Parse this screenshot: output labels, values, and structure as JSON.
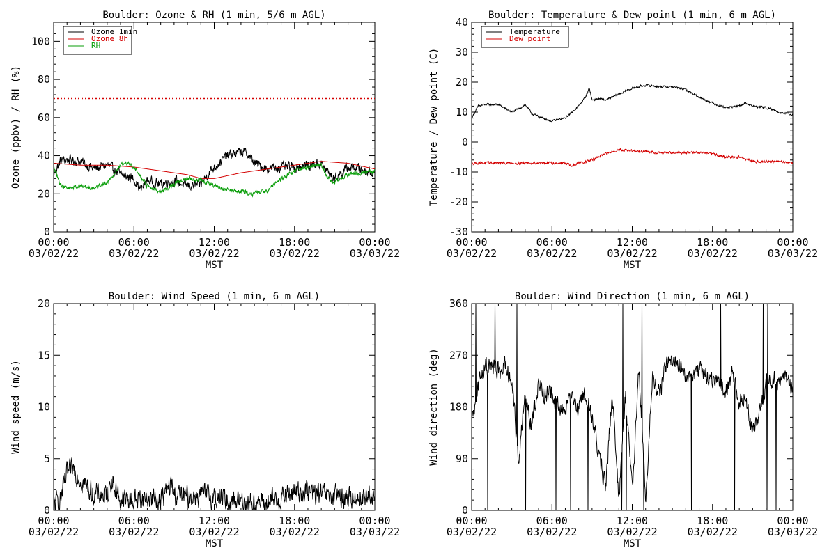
{
  "colors": {
    "black": "#000000",
    "red": "#d40000",
    "green": "#0a9e0a"
  },
  "chart_data": [
    {
      "id": "ozone",
      "type": "line",
      "title": "Boulder: Ozone & RH (1 min, 5/6 m AGL)",
      "xlabel": "MST",
      "ylabel": "Ozone (ppbv) / RH (%)",
      "xlim": [
        0,
        24
      ],
      "ylim": [
        0,
        110
      ],
      "yticks": [
        0,
        20,
        40,
        60,
        80,
        100
      ],
      "xticks": [
        {
          "time": "00:00",
          "date": "03/02/22"
        },
        {
          "time": "06:00",
          "date": "03/02/22"
        },
        {
          "time": "12:00",
          "date": "03/02/22"
        },
        {
          "time": "18:00",
          "date": "03/02/22"
        },
        {
          "time": "00:00",
          "date": "03/03/22"
        }
      ],
      "legend_position": "top-left",
      "reference_line": {
        "y": 70,
        "color": "#d40000",
        "style": "dotted"
      },
      "series": [
        {
          "name": "Ozone 1min",
          "color": "#000000",
          "noise": 2.2,
          "x": [
            0,
            0.5,
            1,
            2,
            3,
            4,
            5,
            6,
            6.5,
            7,
            8,
            9,
            10,
            11,
            11.5,
            12,
            13,
            14,
            14.5,
            15,
            16,
            17,
            18,
            19,
            20,
            20.5,
            21,
            22,
            23,
            24
          ],
          "y": [
            30,
            37,
            38,
            37,
            33,
            35,
            30,
            28,
            22,
            27,
            25,
            27,
            24,
            25,
            30,
            34,
            40,
            42,
            41,
            36,
            33,
            34,
            34,
            35,
            36,
            31,
            28,
            34,
            33,
            31
          ]
        },
        {
          "name": "Ozone 8h",
          "color": "#d40000",
          "noise": 0,
          "x": [
            0,
            2,
            4,
            6,
            8,
            10,
            11,
            12,
            14,
            16,
            18,
            20,
            22,
            24
          ],
          "y": [
            36,
            35,
            35,
            34,
            32,
            30,
            28,
            28,
            31,
            33,
            35,
            37,
            36,
            33
          ]
        },
        {
          "name": "RH",
          "color": "#0a9e0a",
          "noise": 1.0,
          "x": [
            0,
            0.5,
            1,
            2,
            3,
            4,
            5,
            5.5,
            6,
            7,
            8,
            9,
            10,
            11,
            12,
            13,
            14,
            15,
            16,
            17,
            18,
            19,
            20,
            20.5,
            21,
            22,
            23,
            24
          ],
          "y": [
            34,
            25,
            23,
            24,
            23,
            26,
            35,
            36,
            34,
            24,
            21,
            25,
            28,
            27,
            24,
            22,
            21,
            20,
            22,
            28,
            32,
            34,
            35,
            28,
            26,
            30,
            31,
            32
          ]
        }
      ]
    },
    {
      "id": "temp",
      "type": "line",
      "title": "Boulder: Temperature & Dew point (1 min, 6 m AGL)",
      "xlabel": "MST",
      "ylabel": "Temperature / Dew point (C)",
      "xlim": [
        0,
        24
      ],
      "ylim": [
        -30,
        40
      ],
      "yticks": [
        -30,
        -20,
        -10,
        0,
        10,
        20,
        30,
        40
      ],
      "xticks": [
        {
          "time": "00:00",
          "date": "03/02/22"
        },
        {
          "time": "06:00",
          "date": "03/02/22"
        },
        {
          "time": "12:00",
          "date": "03/02/22"
        },
        {
          "time": "18:00",
          "date": "03/02/22"
        },
        {
          "time": "00:00",
          "date": "03/03/22"
        }
      ],
      "legend_position": "top-left",
      "series": [
        {
          "name": "Temperature",
          "color": "#000000",
          "noise": 0.3,
          "x": [
            0,
            0.5,
            1,
            2,
            3,
            3.5,
            4,
            4.5,
            5,
            6,
            7,
            8,
            8.5,
            8.8,
            9,
            9.5,
            10,
            11,
            12,
            13,
            14,
            15,
            16,
            17,
            18,
            19,
            20,
            20.5,
            21,
            22,
            23,
            24
          ],
          "y": [
            8,
            12,
            12.5,
            12.5,
            10,
            11,
            12.5,
            9.5,
            8.5,
            7,
            8,
            12,
            15,
            18,
            14,
            14.5,
            14,
            16,
            18,
            19,
            18.5,
            18.5,
            17.5,
            15,
            13,
            11.5,
            12,
            13,
            12,
            11.5,
            10,
            9
          ]
        },
        {
          "name": "Dew point",
          "color": "#d40000",
          "noise": 0.35,
          "x": [
            0,
            2,
            4,
            6,
            7,
            7.5,
            8,
            9,
            10,
            11,
            12,
            14,
            16,
            17,
            18,
            19,
            20,
            21,
            22,
            23,
            24
          ],
          "y": [
            -7,
            -7,
            -7,
            -7,
            -7,
            -8,
            -7,
            -6,
            -4,
            -2.5,
            -3,
            -3.5,
            -3.5,
            -3.5,
            -4,
            -5,
            -5,
            -6.5,
            -6.5,
            -6.5,
            -7
          ]
        }
      ]
    },
    {
      "id": "wspd",
      "type": "line",
      "title": "Boulder: Wind Speed (1 min, 6 m AGL)",
      "xlabel": "MST",
      "ylabel": "Wind speed (m/s)",
      "xlim": [
        0,
        24
      ],
      "ylim": [
        0,
        20
      ],
      "yticks": [
        0,
        5,
        10,
        15,
        20
      ],
      "xticks": [
        {
          "time": "00:00",
          "date": "03/02/22"
        },
        {
          "time": "06:00",
          "date": "03/02/22"
        },
        {
          "time": "12:00",
          "date": "03/02/22"
        },
        {
          "time": "18:00",
          "date": "03/02/22"
        },
        {
          "time": "00:00",
          "date": "03/03/22"
        }
      ],
      "series": [
        {
          "name": "",
          "color": "#000000",
          "noise": 0.9,
          "floor": 0,
          "x": [
            0,
            0.5,
            1,
            1.5,
            2,
            3,
            4,
            4.3,
            5,
            6,
            7,
            8,
            8.8,
            9,
            10,
            11,
            12,
            13,
            14,
            15,
            16,
            17,
            18,
            19,
            20,
            21,
            22,
            23,
            24
          ],
          "y": [
            0.5,
            1,
            3.5,
            4,
            3,
            1.5,
            1.5,
            3,
            1,
            1,
            1.2,
            1,
            2.5,
            1.5,
            1.3,
            1.5,
            1.3,
            1,
            1,
            0.7,
            0.7,
            1.2,
            1.8,
            1.8,
            1.5,
            1.3,
            1.2,
            1.3,
            1.2
          ]
        }
      ]
    },
    {
      "id": "wdir",
      "type": "line",
      "title": "Boulder: Wind Direction (1 min, 6 m AGL)",
      "xlabel": "MST",
      "ylabel": "Wind direction (deg)",
      "xlim": [
        0,
        24
      ],
      "ylim": [
        0,
        360
      ],
      "yticks": [
        0,
        90,
        180,
        270,
        360
      ],
      "xticks": [
        {
          "time": "00:00",
          "date": "03/02/22"
        },
        {
          "time": "06:00",
          "date": "03/02/22"
        },
        {
          "time": "12:00",
          "date": "03/02/22"
        },
        {
          "time": "18:00",
          "date": "03/02/22"
        },
        {
          "time": "00:00",
          "date": "03/03/22"
        }
      ],
      "series": [
        {
          "name": "",
          "color": "#000000",
          "noise": 14,
          "floor": 0,
          "ceil": 360,
          "spikes": 0.03,
          "x": [
            0,
            0.5,
            1,
            2,
            2.5,
            3,
            3.5,
            4,
            4.5,
            5,
            5.5,
            6,
            6.5,
            7,
            7.5,
            8,
            8.5,
            9,
            9.5,
            10,
            10.5,
            11,
            11.5,
            12,
            12.5,
            13,
            13.5,
            14,
            14.5,
            15,
            16,
            17,
            18,
            19,
            19.5,
            20,
            20.5,
            21,
            21.5,
            22,
            23,
            24
          ],
          "y": [
            150,
            220,
            250,
            245,
            250,
            230,
            80,
            200,
            150,
            220,
            200,
            200,
            180,
            170,
            200,
            180,
            200,
            160,
            100,
            40,
            200,
            20,
            200,
            30,
            250,
            20,
            230,
            200,
            250,
            260,
            240,
            240,
            230,
            210,
            240,
            190,
            200,
            130,
            160,
            220,
            230,
            220
          ]
        }
      ]
    }
  ]
}
